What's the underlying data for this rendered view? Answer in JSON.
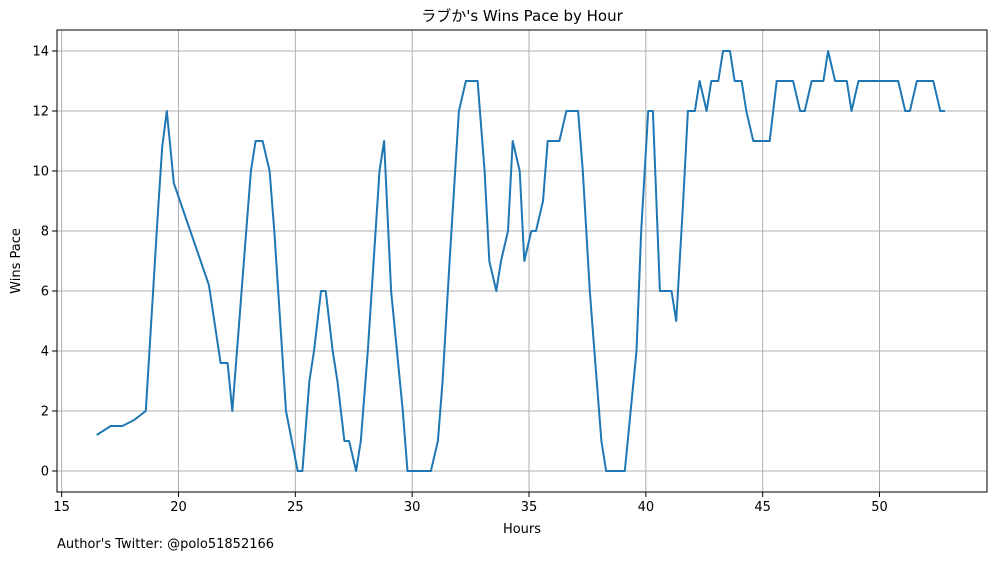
{
  "chart_data": {
    "type": "line",
    "title": "ラブか's Wins Pace by Hour",
    "xlabel": "Hours",
    "ylabel": "Wins Pace",
    "xlim": [
      14.8,
      54.6
    ],
    "ylim": [
      -0.7,
      14.7
    ],
    "xticks": [
      15,
      20,
      25,
      30,
      35,
      40,
      45,
      50
    ],
    "yticks": [
      0,
      2,
      4,
      6,
      8,
      10,
      12,
      14
    ],
    "grid": true,
    "color": "#1f77b4",
    "series": [
      {
        "x": [
          16.5,
          17.1,
          17.6,
          18.1,
          18.6,
          19.1,
          19.3,
          19.5,
          19.8,
          21.3,
          21.8,
          22.1,
          22.3,
          22.6,
          22.8,
          23.1,
          23.3,
          23.6,
          23.9,
          24.1,
          24.6,
          25.1,
          25.3,
          25.6,
          25.8,
          26.1,
          26.3,
          26.6,
          26.8,
          27.1,
          27.3,
          27.6,
          27.8,
          28.1,
          28.6,
          28.8,
          29.1,
          29.6,
          29.8,
          30.1,
          30.4,
          30.8,
          31.1,
          31.3,
          31.6,
          32.0,
          32.3,
          32.6,
          32.8,
          33.1,
          33.3,
          33.6,
          33.8,
          34.1,
          34.3,
          34.6,
          34.8,
          35.1,
          35.3,
          35.6,
          35.8,
          36.1,
          36.3,
          36.6,
          36.8,
          37.1,
          37.3,
          37.6,
          37.8,
          38.1,
          38.3,
          38.6,
          38.8,
          39.1,
          39.6,
          39.8,
          40.1,
          40.3,
          40.6,
          40.8,
          41.1,
          41.3,
          41.6,
          41.8,
          42.1,
          42.3,
          42.6,
          42.8,
          43.1,
          43.3,
          43.6,
          43.8,
          44.1,
          44.3,
          44.6,
          44.8,
          45.1,
          45.3,
          45.6,
          45.8,
          46.1,
          46.3,
          46.6,
          46.8,
          47.1,
          47.3,
          47.6,
          47.8,
          48.1,
          48.3,
          48.6,
          48.8,
          49.1,
          49.3,
          49.6,
          49.8,
          50.1,
          50.3,
          50.6,
          50.8,
          51.1,
          51.3,
          51.6,
          51.8,
          52.1,
          52.3,
          52.6,
          52.8
        ],
        "y": [
          1.2,
          1.5,
          1.5,
          1.7,
          2.0,
          8.4,
          10.8,
          12.0,
          9.6,
          6.2,
          3.6,
          3.6,
          2.0,
          5.0,
          7.0,
          10.0,
          11.0,
          11.0,
          10.0,
          8.0,
          2.0,
          0.0,
          0.0,
          3.0,
          4.0,
          6.0,
          6.0,
          4.0,
          3.0,
          1.0,
          1.0,
          0.0,
          1.0,
          4.0,
          10.0,
          11.0,
          6.0,
          2.0,
          0.0,
          0.0,
          0.0,
          0.0,
          1.0,
          3.0,
          7.0,
          12.0,
          13.0,
          13.0,
          13.0,
          10.0,
          7.0,
          6.0,
          7.0,
          8.0,
          11.0,
          10.0,
          7.0,
          8.0,
          8.0,
          9.0,
          11.0,
          11.0,
          11.0,
          12.0,
          12.0,
          12.0,
          10.0,
          6.0,
          4.0,
          1.0,
          0.0,
          0.0,
          0.0,
          0.0,
          4.0,
          8.0,
          12.0,
          12.0,
          6.0,
          6.0,
          6.0,
          5.0,
          9.0,
          12.0,
          12.0,
          13.0,
          12.0,
          13.0,
          13.0,
          14.0,
          14.0,
          13.0,
          13.0,
          12.0,
          11.0,
          11.0,
          11.0,
          11.0,
          13.0,
          13.0,
          13.0,
          13.0,
          12.0,
          12.0,
          13.0,
          13.0,
          13.0,
          14.0,
          13.0,
          13.0,
          13.0,
          12.0,
          13.0,
          13.0,
          13.0,
          13.0,
          13.0,
          13.0,
          13.0,
          13.0,
          12.0,
          12.0,
          13.0,
          13.0,
          13.0,
          13.0,
          12.0,
          12.0
        ]
      }
    ]
  },
  "footer": {
    "credit": "Author's Twitter: @polo51852166"
  }
}
